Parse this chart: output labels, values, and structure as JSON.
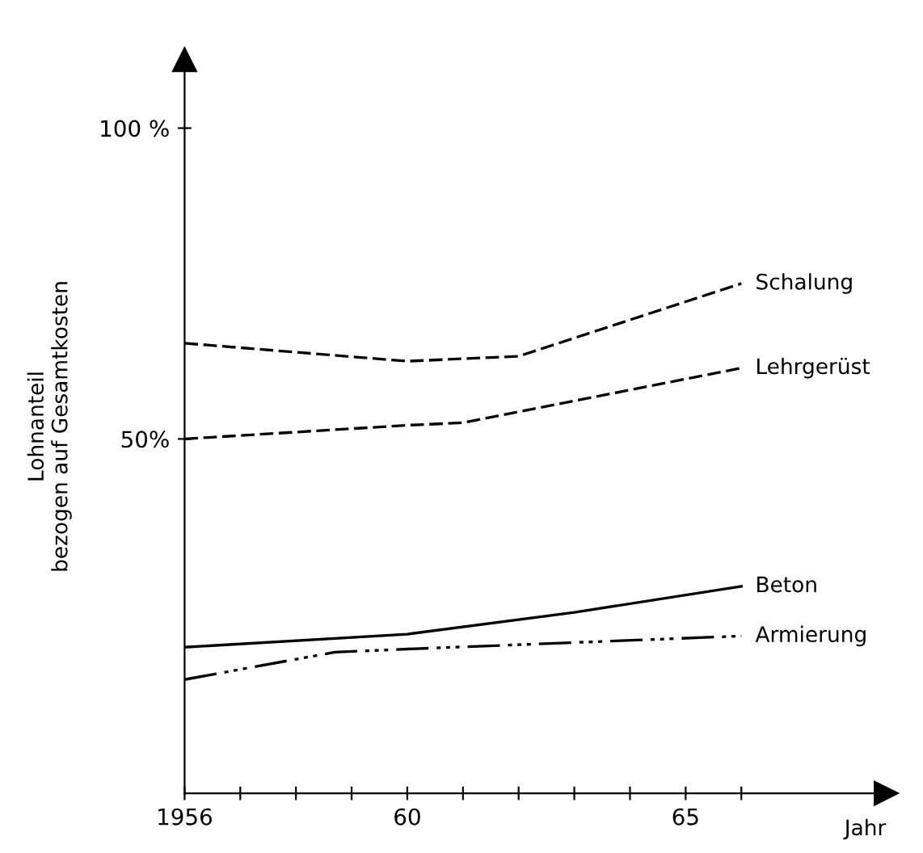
{
  "chart_data": {
    "type": "line",
    "ylabel": "Lohnanteil\nbezogen auf Gesamtkosten",
    "xlabel": "Jahr",
    "xlim": [
      1956,
      1968.6
    ],
    "ylim": [
      -7,
      111
    ],
    "xticks": [
      {
        "value": 1956,
        "label": "1956"
      },
      {
        "value": 1957,
        "label": null
      },
      {
        "value": 1958,
        "label": null
      },
      {
        "value": 1959,
        "label": null
      },
      {
        "value": 1960,
        "label": "60"
      },
      {
        "value": 1961,
        "label": null
      },
      {
        "value": 1962,
        "label": null
      },
      {
        "value": 1963,
        "label": null
      },
      {
        "value": 1964,
        "label": null
      },
      {
        "value": 1965,
        "label": "65"
      },
      {
        "value": 1966,
        "label": null
      }
    ],
    "yticks": [
      {
        "value": 50,
        "label": "50%"
      },
      {
        "value": 100,
        "label": "100 %"
      }
    ],
    "grid": false,
    "marker": "none",
    "series": [
      {
        "name": "Schalung",
        "color": "#000000",
        "line_style": "dashed",
        "x": [
          1956,
          1960,
          1962,
          1966
        ],
        "values": [
          65.4,
          62.5,
          63.3,
          75
        ]
      },
      {
        "name": "Lehrgerüst",
        "color": "#000000",
        "line_style": "dashed",
        "x": [
          1956,
          1960,
          1961,
          1966
        ],
        "values": [
          50,
          52.2,
          52.6,
          61.4
        ]
      },
      {
        "name": "Beton",
        "color": "#000000",
        "line_style": "solid",
        "x": [
          1956,
          1960,
          1963,
          1966
        ],
        "values": [
          16.5,
          18.6,
          22.1,
          26.3
        ]
      },
      {
        "name": "Armierung",
        "color": "#000000",
        "line_style": "dotted",
        "x": [
          1956,
          1958.7,
          1960,
          1966
        ],
        "values": [
          11.3,
          15.7,
          16.2,
          18.3
        ]
      }
    ]
  }
}
